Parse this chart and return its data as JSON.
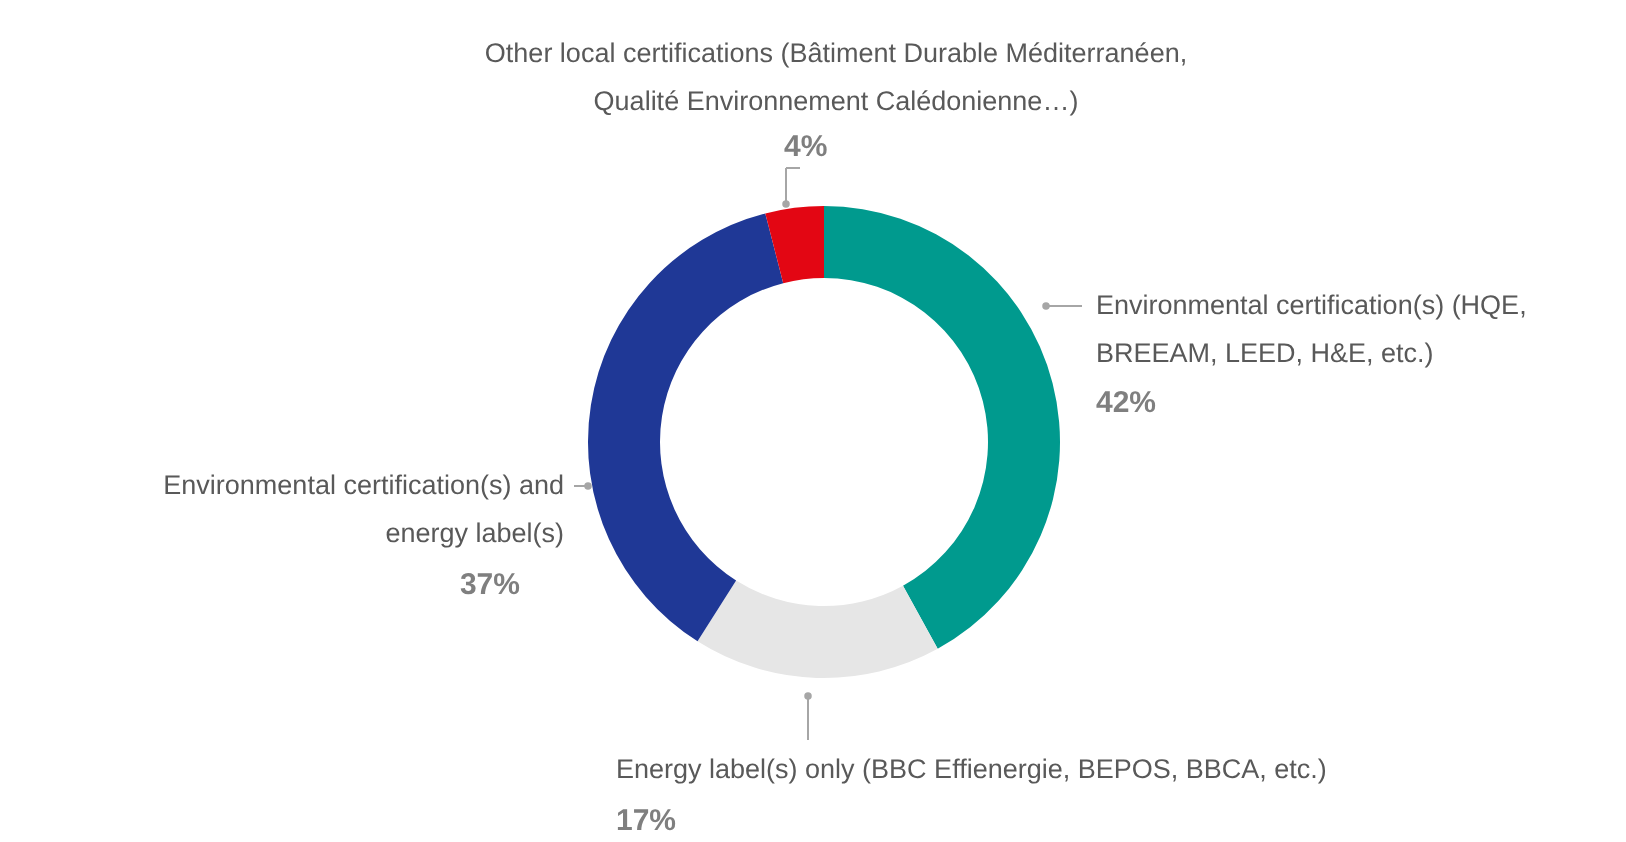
{
  "chart_data": {
    "type": "donut",
    "categories": [
      "Environmental certification(s) (HQE, BREEAM, LEED, H&E, etc.)",
      "Energy label(s) only (BBC Effienergie, BEPOS, BBCA, etc.)",
      "Environmental certification(s) and energy label(s)",
      "Other local certifications (Bâtiment Durable Méditerranéen, Qualité Environnement Calédonienne…)"
    ],
    "values": [
      42,
      17,
      37,
      4
    ],
    "value_labels": [
      "42%",
      "17%",
      "37%",
      "4%"
    ],
    "colors": [
      "#009a8e",
      "#e6e6e6",
      "#1f3896",
      "#e30613"
    ]
  }
}
